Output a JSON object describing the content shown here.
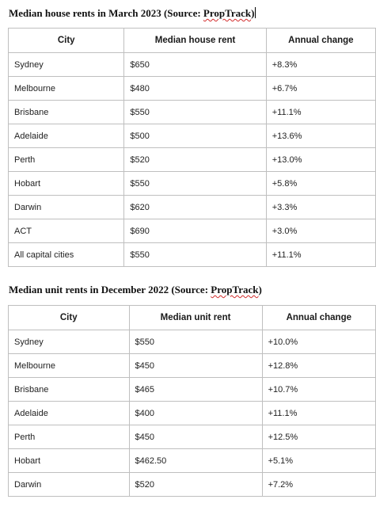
{
  "house": {
    "title_prefix": "Median house rents in March 2023 (Source: ",
    "source": "PropTrack",
    "title_suffix": ")",
    "headers": [
      "City",
      "Median house rent",
      "Annual change"
    ],
    "rows": [
      [
        "Sydney",
        "$650",
        "+8.3%"
      ],
      [
        "Melbourne",
        "$480",
        "+6.7%"
      ],
      [
        "Brisbane",
        "$550",
        "+11.1%"
      ],
      [
        "Adelaide",
        "$500",
        "+13.6%"
      ],
      [
        "Perth",
        "$520",
        "+13.0%"
      ],
      [
        "Hobart",
        "$550",
        "+5.8%"
      ],
      [
        "Darwin",
        "$620",
        "+3.3%"
      ],
      [
        "ACT",
        "$690",
        "+3.0%"
      ],
      [
        "All capital cities",
        "$550",
        "+11.1%"
      ]
    ]
  },
  "unit": {
    "title_prefix": "Median unit rents in December 2022 (Source: ",
    "source": "PropTrack",
    "title_suffix": ")",
    "headers": [
      "City",
      "Median unit rent",
      "Annual change"
    ],
    "rows": [
      [
        "Sydney",
        "$550",
        "+10.0%"
      ],
      [
        "Melbourne",
        "$450",
        "+12.8%"
      ],
      [
        "Brisbane",
        "$465",
        "+10.7%"
      ],
      [
        "Adelaide",
        "$400",
        "+11.1%"
      ],
      [
        "Perth",
        "$450",
        "+12.5%"
      ],
      [
        "Hobart",
        "$462.50",
        "+5.1%"
      ],
      [
        "Darwin",
        "$520",
        "+7.2%"
      ]
    ]
  }
}
